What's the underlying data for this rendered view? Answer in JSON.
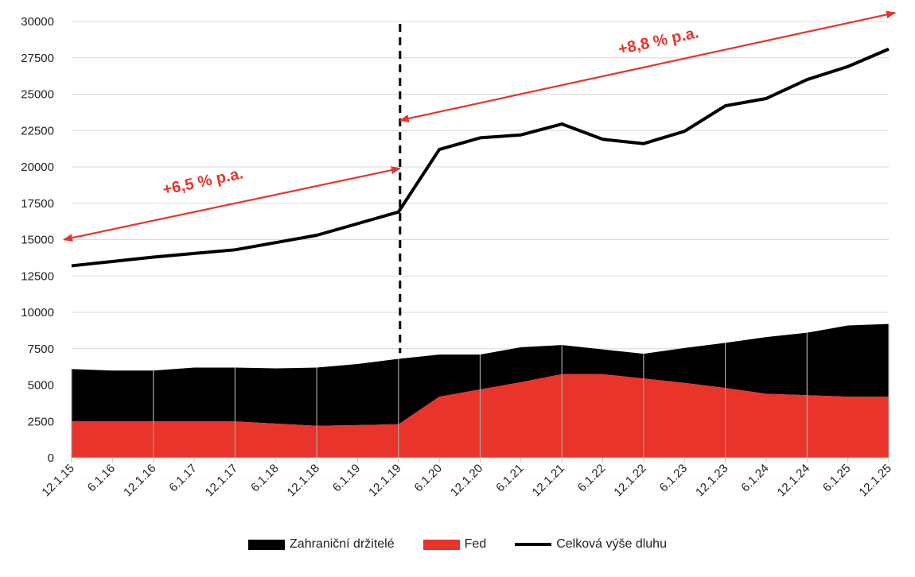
{
  "chart_data": {
    "type": "area",
    "title": "",
    "xlabel": "",
    "ylabel": "",
    "ylim": [
      0,
      30000
    ],
    "yticks": [
      0,
      2500,
      5000,
      7500,
      10000,
      12500,
      15000,
      17500,
      20000,
      22500,
      25000,
      27500,
      30000
    ],
    "categories": [
      "12.1.15",
      "6.1.16",
      "12.1.16",
      "6.1.17",
      "12.1.17",
      "6.1.18",
      "12.1.18",
      "6.1.19",
      "12.1.19",
      "6.1.20",
      "12.1.20",
      "6.1.21",
      "12.1.21",
      "6.1.22",
      "12.1.22",
      "6.1.23",
      "12.1.23",
      "6.1.24",
      "12.1.24",
      "6.1.25",
      "12.1.25"
    ],
    "series": [
      {
        "name": "Zahraniční držitelé",
        "kind": "stacked-area",
        "color": "#000000",
        "values": [
          3600,
          3500,
          3500,
          3700,
          3700,
          3800,
          4000,
          4200,
          4500,
          2900,
          2400,
          2400,
          2000,
          1700,
          1700,
          2400,
          3100,
          3900,
          4300,
          4900,
          5000
        ]
      },
      {
        "name": "Fed",
        "kind": "area",
        "color": "#E8342A",
        "values": [
          2500,
          2500,
          2500,
          2500,
          2500,
          2350,
          2200,
          2250,
          2300,
          4200,
          4700,
          5200,
          5750,
          5750,
          5450,
          5150,
          4800,
          4400,
          4300,
          4200,
          4200
        ]
      },
      {
        "name": "Celková výše dluhu",
        "kind": "line",
        "color": "#000000",
        "values": [
          13200,
          13500,
          13800,
          14050,
          14300,
          14800,
          15300,
          16100,
          16900,
          21200,
          22000,
          22200,
          22950,
          21900,
          21600,
          22450,
          24200,
          24700,
          26000,
          26900,
          28100
        ]
      }
    ],
    "annotations": [
      {
        "text": "+6,5 % p.a.",
        "color": "#E8342A",
        "arrow_from": [
          "12.1.15",
          15000
        ],
        "arrow_to": [
          "12.1.19",
          19900
        ]
      },
      {
        "text": "+8,8 % p.a.",
        "color": "#E8342A",
        "arrow_from": [
          "12.1.19",
          23200
        ],
        "arrow_to": [
          "12.1.25",
          30600
        ]
      }
    ],
    "vline": {
      "at": "12.1.19",
      "style": "dashed",
      "color": "#000000"
    },
    "legend": {
      "position": "bottom"
    }
  }
}
